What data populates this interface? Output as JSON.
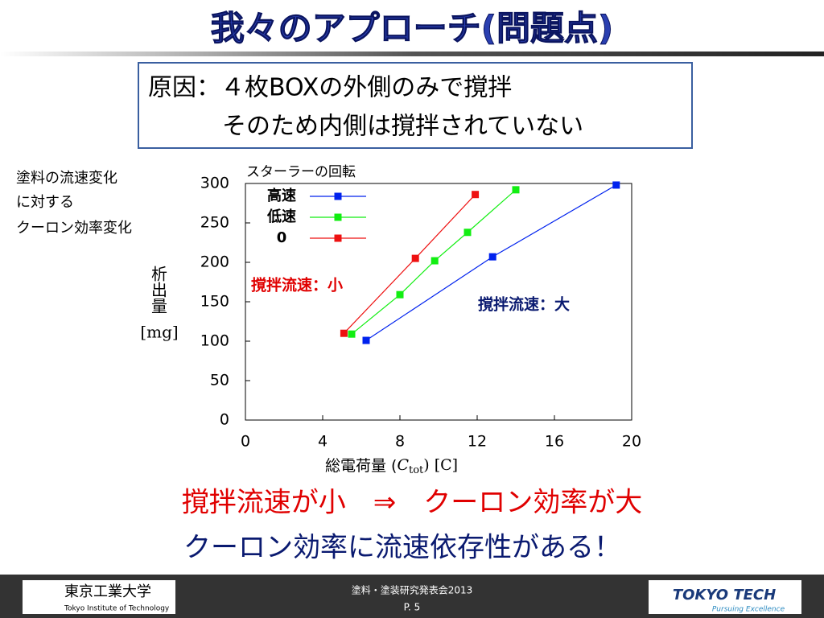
{
  "slide": {
    "title": "我々のアプローチ(問題点)",
    "box_lines": [
      "原因：４枚BOXの外側のみで撹拌",
      "そのため内側は撹拌されていない"
    ],
    "side_note": [
      "塗料の流速変化",
      "に対する",
      "クーロン効率変化"
    ],
    "conclusion": [
      "撹拌流速が小　⇒　クーロン効率が大",
      "クーロン効率に流速依存性がある！"
    ],
    "footer": {
      "univ_ja": "東京工業大学",
      "univ_en": "Tokyo Institute of Technology",
      "event": "塗料・塗装研究発表会2013",
      "page": "P. 5",
      "logo": "TOKYO TECH",
      "slogan": "Pursuing Excellence"
    }
  },
  "chart_data": {
    "type": "line",
    "x_label": [
      "総電荷量 (",
      "C",
      "tot",
      ") [C]"
    ],
    "y_label": [
      "析出量",
      "[mg]"
    ],
    "legend_title": "スターラーの回転",
    "annotations": [
      "撹拌流速：小",
      "撹拌流速：大"
    ],
    "xlim": [
      0,
      20
    ],
    "xticks": [
      0,
      4,
      8,
      12,
      16,
      20
    ],
    "ylim": [
      0,
      300
    ],
    "yticks": [
      0,
      50,
      100,
      150,
      200,
      250,
      300
    ],
    "grid": false,
    "series": [
      {
        "name": "高速",
        "color": "#0022ee",
        "x": [
          6.25,
          12.8,
          19.2
        ],
        "values": [
          101,
          207,
          298
        ]
      },
      {
        "name": "低速",
        "color": "#11ee11",
        "x": [
          5.5,
          8.0,
          9.8,
          11.5,
          14.0
        ],
        "values": [
          109,
          159,
          202,
          238,
          292
        ]
      },
      {
        "name": "0",
        "color": "#ee1111",
        "x": [
          5.1,
          8.8,
          11.9
        ],
        "values": [
          110,
          205,
          286
        ]
      }
    ]
  }
}
